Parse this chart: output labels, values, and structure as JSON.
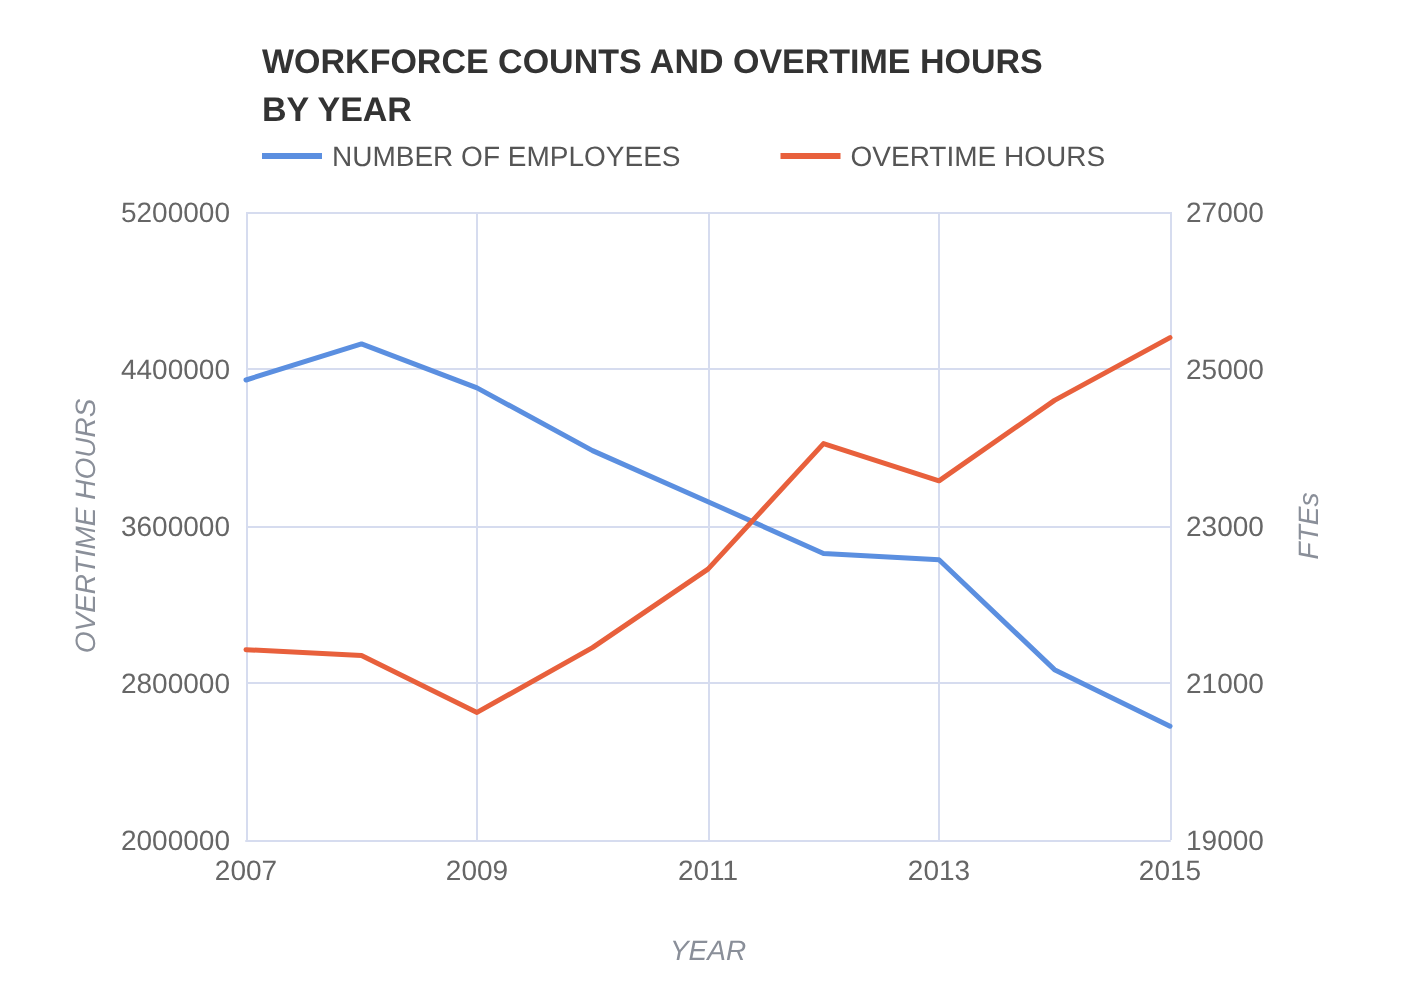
{
  "chart_data": {
    "type": "line",
    "title": "WORKFORCE COUNTS AND OVERTIME HOURS\nBY YEAR",
    "xlabel": "YEAR",
    "ylabel": "OVERTIME HOURS",
    "y2label": "FTEs",
    "x": [
      2007,
      2008,
      2009,
      2010,
      2011,
      2012,
      2013,
      2014,
      2015
    ],
    "series": [
      {
        "name": "NUMBER OF EMPLOYEES",
        "color": "#5b8fe0",
        "axis": "y2",
        "values": [
          24860,
          25320,
          24760,
          23960,
          23310,
          22650,
          22570,
          21170,
          20450
        ]
      },
      {
        "name": "OVERTIME HOURS",
        "color": "#e8603c",
        "values": [
          2970000,
          2940000,
          2650000,
          2980000,
          3380000,
          4020000,
          3830000,
          4240000,
          4560000
        ]
      }
    ],
    "xlim": [
      2007,
      2015
    ],
    "xticks": [
      2007,
      2009,
      2011,
      2013,
      2015
    ],
    "ylim": [
      2000000,
      5200000
    ],
    "yticks": [
      2000000,
      2800000,
      3600000,
      4400000,
      5200000
    ],
    "y2lim": [
      19000,
      27000
    ],
    "y2ticks": [
      19000,
      21000,
      23000,
      25000,
      27000
    ],
    "grid": true,
    "legend": "top left",
    "marker": "none",
    "line_style": "solid"
  }
}
